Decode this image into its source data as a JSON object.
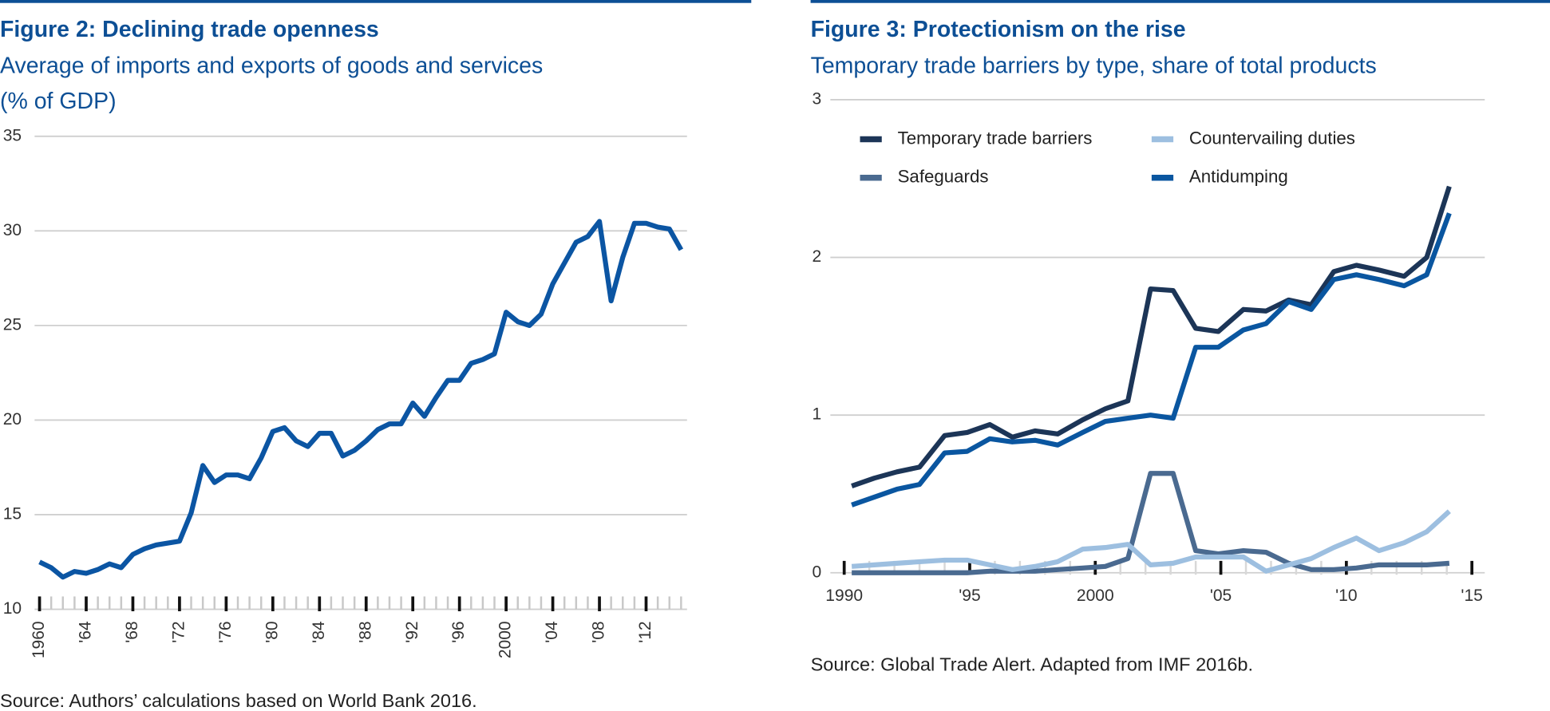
{
  "chart_data": [
    {
      "type": "line",
      "title": "Figure 2: Declining trade openness",
      "subtitle": [
        "Average of imports and exports of goods and services",
        "(% of GDP)"
      ],
      "source": "Source: Authors’ calculations based on World Bank 2016.",
      "x": [
        1960,
        1961,
        1962,
        1963,
        1964,
        1965,
        1966,
        1967,
        1968,
        1969,
        1970,
        1971,
        1972,
        1973,
        1974,
        1975,
        1976,
        1977,
        1978,
        1979,
        1980,
        1981,
        1982,
        1983,
        1984,
        1985,
        1986,
        1987,
        1988,
        1989,
        1990,
        1991,
        1992,
        1993,
        1994,
        1995,
        1996,
        1997,
        1998,
        1999,
        2000,
        2001,
        2002,
        2003,
        2004,
        2005,
        2006,
        2007,
        2008,
        2009,
        2010,
        2011,
        2012,
        2013,
        2014,
        2015
      ],
      "series": [
        {
          "name": "Trade openness",
          "color": "#0b55a3",
          "values": [
            12.5,
            12.2,
            11.7,
            12.0,
            11.9,
            12.1,
            12.4,
            12.2,
            12.9,
            13.2,
            13.4,
            13.5,
            13.6,
            15.1,
            17.6,
            16.7,
            17.1,
            17.1,
            16.9,
            18.0,
            19.4,
            19.6,
            18.9,
            18.6,
            19.3,
            19.3,
            18.1,
            18.4,
            18.9,
            19.5,
            19.8,
            19.8,
            20.9,
            20.2,
            21.2,
            22.1,
            22.1,
            23.0,
            23.2,
            23.5,
            25.7,
            25.2,
            25.0,
            25.6,
            27.2,
            28.3,
            29.4,
            29.7,
            30.5,
            26.3,
            28.6,
            30.4,
            30.4,
            30.2,
            30.1,
            29.0
          ]
        }
      ],
      "xlim": [
        1960,
        2015
      ],
      "xticks": [
        1960,
        {
          "value": 1964,
          "label": "'64"
        },
        {
          "value": 1968,
          "label": "'68"
        },
        {
          "value": 1972,
          "label": "'72"
        },
        {
          "value": 1976,
          "label": "'76"
        },
        {
          "value": 1980,
          "label": "'80"
        },
        {
          "value": 1984,
          "label": "'84"
        },
        {
          "value": 1988,
          "label": "'88"
        },
        {
          "value": 1992,
          "label": "'92"
        },
        {
          "value": 1996,
          "label": "'96"
        },
        2000,
        {
          "value": 2004,
          "label": "'04"
        },
        {
          "value": 2008,
          "label": "'08"
        },
        {
          "value": 2012,
          "label": "'12"
        }
      ],
      "ylim": [
        10,
        35
      ],
      "yticks": [
        10,
        15,
        20,
        25,
        30,
        35
      ],
      "grid": true
    },
    {
      "type": "line",
      "title": "Figure 3: Protectionism on the rise",
      "subtitle": [
        "Temporary trade barriers by type, share of total products"
      ],
      "source": "Source: Global Trade Alert. Adapted from IMF 2016b.",
      "x": [
        1990.3,
        1991.2,
        1992.1,
        1993.0,
        1994.0,
        1994.9,
        1995.8,
        1996.7,
        1997.6,
        1998.5,
        1999.5,
        2000.4,
        2001.3,
        2002.2,
        2003.1,
        2004.0,
        2004.9,
        2005.9,
        2006.8,
        2007.7,
        2008.6,
        2009.5,
        2010.4,
        2011.3,
        2012.3,
        2013.2,
        2014.1
      ],
      "series": [
        {
          "name": "Temporary trade barriers",
          "color": "#1c3557",
          "values": [
            0.55,
            0.6,
            0.64,
            0.67,
            0.87,
            0.89,
            0.94,
            0.86,
            0.9,
            0.88,
            0.97,
            1.04,
            1.09,
            1.8,
            1.79,
            1.55,
            1.53,
            1.67,
            1.66,
            1.73,
            1.7,
            1.91,
            1.95,
            1.92,
            1.88,
            2.0,
            2.45
          ]
        },
        {
          "name": "Safeguards",
          "color": "#4a6a90",
          "values": [
            0,
            0,
            0,
            0,
            0,
            0,
            0.01,
            0.01,
            0.01,
            0.02,
            0.03,
            0.04,
            0.09,
            0.63,
            0.63,
            0.14,
            0.12,
            0.14,
            0.13,
            0.06,
            0.02,
            0.02,
            0.03,
            0.05,
            0.05,
            0.05,
            0.06
          ]
        },
        {
          "name": "Countervailing duties",
          "color": "#9dbfe0",
          "values": [
            0.04,
            0.05,
            0.06,
            0.07,
            0.08,
            0.08,
            0.05,
            0.02,
            0.04,
            0.07,
            0.15,
            0.16,
            0.18,
            0.05,
            0.06,
            0.1,
            0.1,
            0.1,
            0.01,
            0.05,
            0.09,
            0.16,
            0.22,
            0.14,
            0.19,
            0.26,
            0.39
          ]
        },
        {
          "name": "Antidumping",
          "color": "#0a56a0",
          "values": [
            0.43,
            0.48,
            0.53,
            0.56,
            0.76,
            0.77,
            0.85,
            0.83,
            0.84,
            0.81,
            0.89,
            0.96,
            0.98,
            1.0,
            0.98,
            1.43,
            1.43,
            1.54,
            1.58,
            1.72,
            1.67,
            1.86,
            1.89,
            1.86,
            1.82,
            1.89,
            2.28
          ]
        }
      ],
      "legend": "top-left",
      "xlim": [
        1990,
        2015
      ],
      "xticks": [
        1990,
        {
          "value": 1995,
          "label": "'95"
        },
        2000,
        {
          "value": 2005,
          "label": "'05"
        },
        {
          "value": 2010,
          "label": "'10"
        },
        {
          "value": 2015,
          "label": "'15"
        }
      ],
      "ylim": [
        0,
        3
      ],
      "yticks": [
        0,
        1,
        2,
        3
      ],
      "grid": true
    }
  ]
}
